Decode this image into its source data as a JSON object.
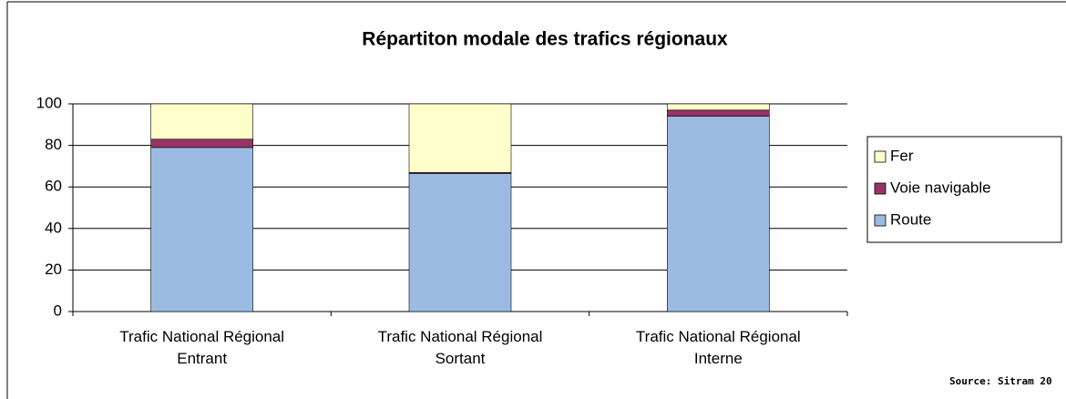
{
  "chart_data": {
    "type": "stacked_bar",
    "title": "Répartiton modale des trafics régionaux",
    "categories": [
      "Trafic National Régional Entrant",
      "Trafic National Régional Sortant",
      "Trafic National Régional Interne"
    ],
    "series": [
      {
        "name": "Route",
        "color": "#9bbbe3",
        "values": [
          79,
          66.5,
          94
        ]
      },
      {
        "name": "Voie navigable",
        "color": "#993366",
        "values": [
          4,
          0.5,
          3
        ]
      },
      {
        "name": "Fer",
        "color": "#ffffcc",
        "values": [
          17,
          33,
          3
        ]
      }
    ],
    "ylim": [
      0,
      100
    ],
    "yticks": [
      0,
      20,
      40,
      60,
      80,
      100
    ],
    "grid": true,
    "legend": "right",
    "source": "Source:  Sitram  20"
  }
}
